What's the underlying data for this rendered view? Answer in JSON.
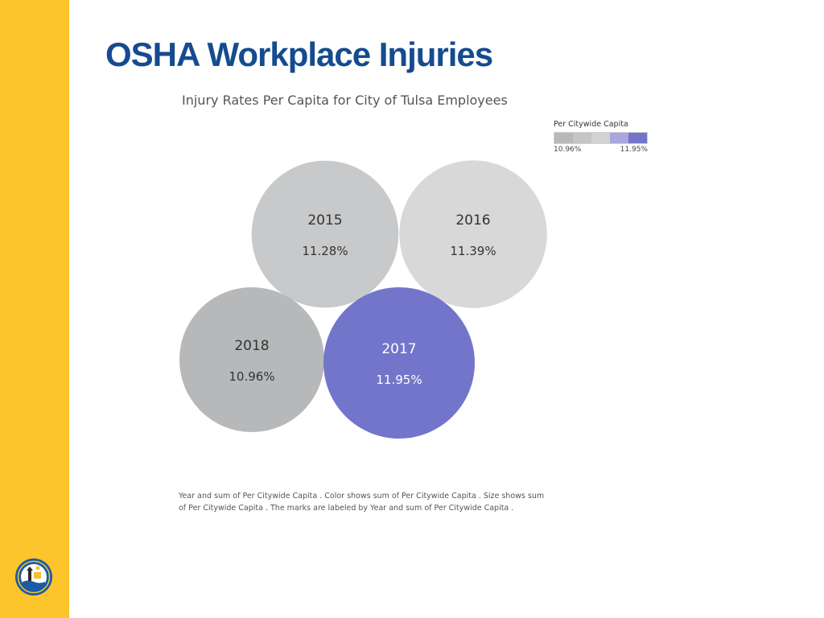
{
  "slide": {
    "title": "OSHA Workplace Injuries",
    "accent_color": "#fdc52b",
    "title_color": "#154b8f"
  },
  "chart_data": {
    "type": "bubble",
    "title": "Injury Rates Per Capita for City of Tulsa Employees",
    "legend": {
      "title": "Per Citywide Capita",
      "min_label": "10.96%",
      "max_label": "11.95%",
      "placement": "top-right",
      "colors": [
        "#b6b8ba",
        "#c4c5c6",
        "#d3d3d3",
        "#a9a7dd",
        "#7375cb"
      ]
    },
    "points": [
      {
        "year": "2015",
        "label": "11.28%",
        "value": 11.28,
        "color": "#c8c9ca"
      },
      {
        "year": "2016",
        "label": "11.39%",
        "value": 11.39,
        "color": "#d8d8d8"
      },
      {
        "year": "2018",
        "label": "10.96%",
        "value": 10.96,
        "color": "#b6b8ba"
      },
      {
        "year": "2017",
        "label": "11.95%",
        "value": 11.95,
        "color": "#7375cb"
      }
    ],
    "caption": "Year and sum of Per Citywide Capita .  Color shows sum of Per Citywide Capita .  Size shows sum of Per Citywide Capita .  The marks are labeled by Year and sum of Per Citywide Capita ."
  },
  "logo": {
    "name": "city-of-tulsa-seal-icon",
    "colors": [
      "#1a5aa6",
      "#f2c230"
    ]
  }
}
